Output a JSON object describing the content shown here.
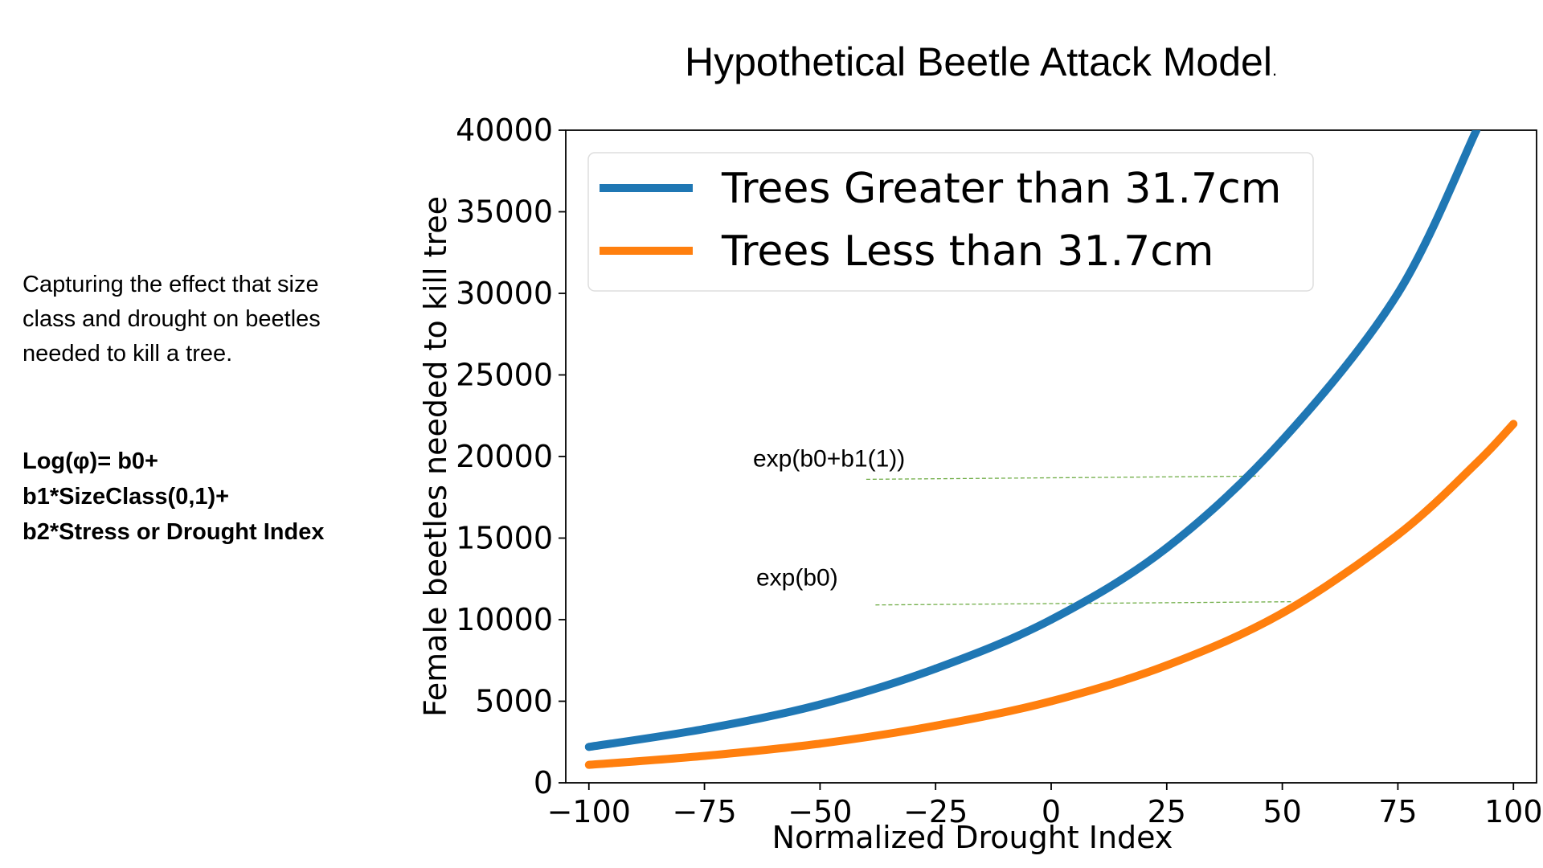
{
  "slide": {
    "title": "Hypothetical Beetle Attack Model",
    "title_suffix": ".",
    "description": "Capturing the effect that size class and drought on beetles needed to kill a tree.",
    "formula_lines": [
      "Log(φ)= b0+",
      "b1*SizeClass(0,1)+",
      "b2*Stress or Drought Index"
    ]
  },
  "chart_data": {
    "type": "line",
    "title": "",
    "xlabel": "Normalized Drought Index",
    "ylabel": "Female beetles needed to kill tree",
    "xlim": [
      -105,
      105
    ],
    "ylim": [
      0,
      40000
    ],
    "x_ticks": [
      -100,
      -75,
      -50,
      -25,
      0,
      25,
      50,
      75,
      100
    ],
    "x_tick_labels": [
      "−100",
      "−75",
      "−50",
      "−25",
      "0",
      "25",
      "50",
      "75",
      "100"
    ],
    "y_ticks": [
      0,
      5000,
      10000,
      15000,
      20000,
      25000,
      30000,
      35000,
      40000
    ],
    "y_tick_labels": [
      "0",
      "5000",
      "10000",
      "15000",
      "20000",
      "25000",
      "30000",
      "35000",
      "40000"
    ],
    "grid": false,
    "legend_position": "top-left",
    "x": [
      -100,
      -75,
      -50,
      -25,
      0,
      25,
      50,
      75,
      92,
      100
    ],
    "series": [
      {
        "name": "Trees Greater than 31.7cm",
        "color": "#1f77b4",
        "values": [
          2200,
          3300,
          4800,
          7000,
          10000,
          14400,
          21000,
          30000,
          40000,
          null
        ]
      },
      {
        "name": "Trees Less than 31.7cm",
        "color": "#ff7f0e",
        "values": [
          1100,
          1650,
          2400,
          3500,
          5000,
          7200,
          10400,
          15200,
          19600,
          22000
        ]
      }
    ],
    "annotations": [
      {
        "text": "exp(b0+b1(1))",
        "level": 18700,
        "x_from": -40,
        "x_to": 45,
        "color": "#70ad47"
      },
      {
        "text": "exp(b0)",
        "level": 11000,
        "x_from": -38,
        "x_to": 52,
        "color": "#70ad47"
      }
    ]
  }
}
